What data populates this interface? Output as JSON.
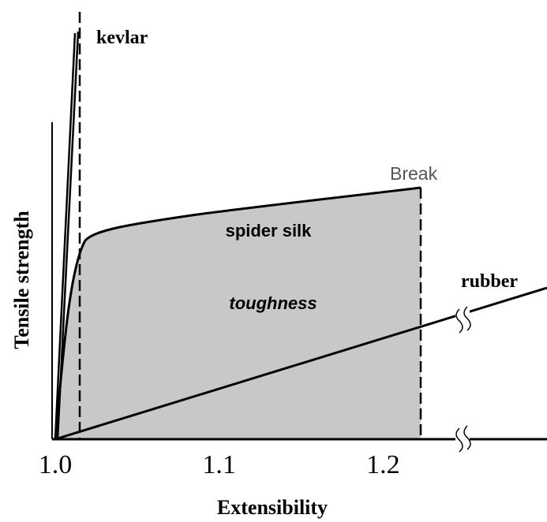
{
  "chart_data": {
    "type": "line",
    "x_label": "Extensibility",
    "y_label": "Tensile strength",
    "xlim": [
      1.0,
      1.3
    ],
    "xticks": [
      {
        "value": 1.0,
        "label": "1.0"
      },
      1.1,
      1.2
    ],
    "annotations": [
      "kevlar",
      "Break",
      "spider silk",
      "toughness",
      "rubber"
    ]
  }
}
